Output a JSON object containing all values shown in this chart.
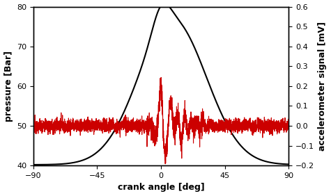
{
  "xlabel": "crank angle [deg]",
  "ylabel_left": "pressure [Bar]",
  "ylabel_right": "accelerometer signal [mV]",
  "xlim": [
    -90,
    90
  ],
  "ylim_left": [
    40,
    80
  ],
  "ylim_right": [
    -0.2,
    0.6
  ],
  "xticks": [
    -90,
    -45,
    0,
    45,
    90
  ],
  "yticks_left": [
    40,
    50,
    60,
    70,
    80
  ],
  "yticks_right": [
    -0.2,
    -0.1,
    0.0,
    0.1,
    0.2,
    0.3,
    0.4,
    0.5,
    0.6
  ],
  "pressure_color": "#000000",
  "accel_color": "#cc0000",
  "background_color": "#ffffff",
  "linewidth_pressure": 1.5,
  "linewidth_accel": 0.8
}
